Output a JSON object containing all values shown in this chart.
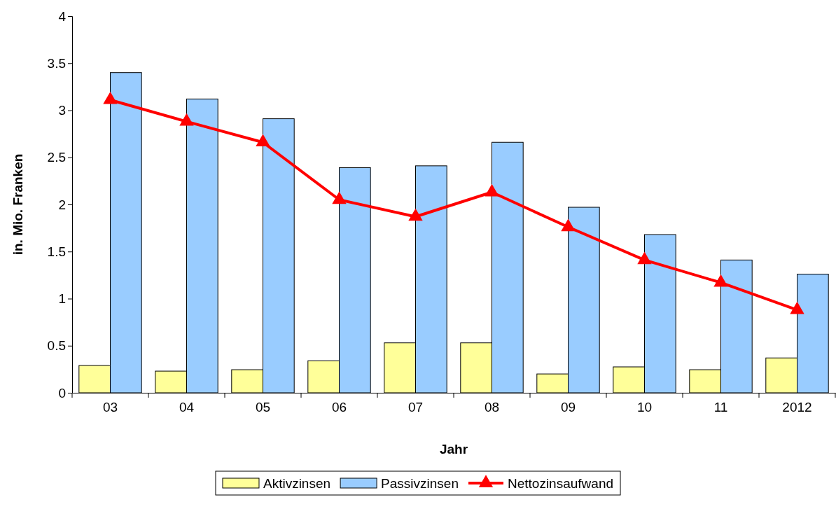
{
  "chart_data": {
    "type": "bar",
    "xlabel": "Jahr",
    "ylabel": "in. Mio. Franken",
    "categories": [
      "03",
      "04",
      "05",
      "06",
      "07",
      "08",
      "09",
      "10",
      "11",
      "2012"
    ],
    "series": [
      {
        "name": "Aktivzinsen",
        "color": "#ffff99",
        "values": [
          0.29,
          0.23,
          0.245,
          0.34,
          0.53,
          0.53,
          0.2,
          0.275,
          0.245,
          0.37
        ]
      },
      {
        "name": "Passivzinsen",
        "color": "#99ccff",
        "values": [
          3.4,
          3.12,
          2.91,
          2.39,
          2.41,
          2.66,
          1.97,
          1.68,
          1.41,
          1.26
        ]
      },
      {
        "name": "Nettozinsaufwand",
        "type": "line",
        "color": "#ff0000",
        "marker": "triangle",
        "values": [
          3.11,
          2.88,
          2.66,
          2.05,
          1.87,
          2.13,
          1.76,
          1.41,
          1.17,
          0.88
        ]
      }
    ],
    "ylim": [
      0,
      4
    ],
    "yticks": [
      0,
      0.5,
      1,
      1.5,
      2,
      2.5,
      3,
      3.5,
      4
    ],
    "grid": false,
    "legend": "bottom"
  }
}
